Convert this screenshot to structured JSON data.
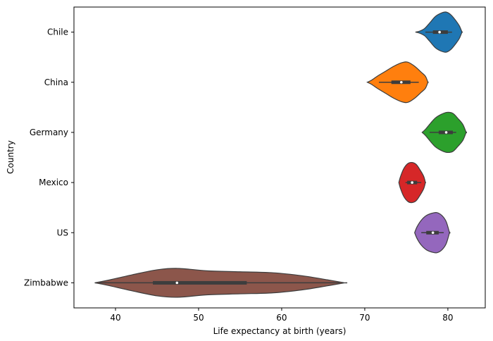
{
  "chart_data": {
    "type": "violin",
    "orientation": "horizontal",
    "xlabel": "Life expectancy at birth (years)",
    "ylabel": "Country",
    "xlim": [
      35,
      84.5
    ],
    "xticks": [
      40,
      50,
      60,
      70,
      80
    ],
    "grid": false,
    "categories": [
      "Chile",
      "China",
      "Germany",
      "Mexico",
      "US",
      "Zimbabwe"
    ],
    "series": [
      {
        "name": "Chile",
        "color": "#1f77b4",
        "range": [
          76.1,
          81.7
        ],
        "q1": 78.2,
        "median": 79.0,
        "q3": 80.0,
        "whisker": [
          77.3,
          80.5
        ],
        "profile": [
          [
            76.1,
            0.0
          ],
          [
            76.6,
            0.05
          ],
          [
            77.2,
            0.18
          ],
          [
            77.8,
            0.45
          ],
          [
            78.5,
            0.78
          ],
          [
            79.2,
            0.95
          ],
          [
            79.8,
            1.0
          ],
          [
            80.4,
            0.85
          ],
          [
            81.0,
            0.55
          ],
          [
            81.4,
            0.3
          ],
          [
            81.7,
            0.0
          ]
        ]
      },
      {
        "name": "China",
        "color": "#ff7f0e",
        "range": [
          70.3,
          77.6
        ],
        "q1": 73.2,
        "median": 74.4,
        "q3": 75.5,
        "whisker": [
          71.7,
          76.5
        ],
        "profile": [
          [
            70.3,
            0.0
          ],
          [
            70.8,
            0.1
          ],
          [
            71.5,
            0.3
          ],
          [
            72.5,
            0.55
          ],
          [
            73.5,
            0.8
          ],
          [
            74.5,
            0.98
          ],
          [
            75.2,
            1.0
          ],
          [
            76.0,
            0.8
          ],
          [
            76.8,
            0.5
          ],
          [
            77.3,
            0.3
          ],
          [
            77.6,
            0.0
          ]
        ]
      },
      {
        "name": "Germany",
        "color": "#2ca02c",
        "range": [
          76.9,
          82.2
        ],
        "q1": 78.9,
        "median": 79.8,
        "q3": 80.6,
        "whisker": [
          77.8,
          81.0
        ],
        "profile": [
          [
            76.9,
            0.0
          ],
          [
            77.3,
            0.15
          ],
          [
            77.9,
            0.45
          ],
          [
            78.5,
            0.72
          ],
          [
            79.2,
            0.9
          ],
          [
            79.9,
            1.0
          ],
          [
            80.6,
            0.95
          ],
          [
            81.2,
            0.7
          ],
          [
            81.8,
            0.4
          ],
          [
            82.2,
            0.0
          ]
        ]
      },
      {
        "name": "Mexico",
        "color": "#d62728",
        "range": [
          74.1,
          77.3
        ],
        "q1": 75.1,
        "median": 75.7,
        "q3": 76.3,
        "whisker": [
          74.9,
          76.8
        ],
        "profile": [
          [
            74.1,
            0.0
          ],
          [
            74.3,
            0.3
          ],
          [
            74.7,
            0.7
          ],
          [
            75.2,
            0.95
          ],
          [
            75.7,
            1.0
          ],
          [
            76.2,
            0.9
          ],
          [
            76.7,
            0.6
          ],
          [
            77.1,
            0.3
          ],
          [
            77.3,
            0.0
          ]
        ]
      },
      {
        "name": "US",
        "color": "#9467bd",
        "range": [
          76.0,
          80.2
        ],
        "q1": 77.4,
        "median": 78.2,
        "q3": 78.9,
        "whisker": [
          76.8,
          79.5
        ],
        "profile": [
          [
            76.0,
            0.0
          ],
          [
            76.3,
            0.3
          ],
          [
            76.8,
            0.62
          ],
          [
            77.4,
            0.85
          ],
          [
            78.1,
            0.97
          ],
          [
            78.7,
            1.0
          ],
          [
            79.3,
            0.85
          ],
          [
            79.8,
            0.55
          ],
          [
            80.2,
            0.0
          ]
        ]
      },
      {
        "name": "Zimbabwe",
        "color": "#8c564b",
        "range": [
          37.5,
          67.6
        ],
        "q1": 44.5,
        "median": 47.4,
        "q3": 55.8,
        "whisker": [
          38.0,
          67.0
        ],
        "profile": [
          [
            37.5,
            0.0
          ],
          [
            39.0,
            0.12
          ],
          [
            42.0,
            0.4
          ],
          [
            45.0,
            0.65
          ],
          [
            47.5,
            0.72
          ],
          [
            51.0,
            0.6
          ],
          [
            55.0,
            0.55
          ],
          [
            59.0,
            0.5
          ],
          [
            62.5,
            0.35
          ],
          [
            65.5,
            0.15
          ],
          [
            67.6,
            0.0
          ]
        ]
      }
    ]
  }
}
